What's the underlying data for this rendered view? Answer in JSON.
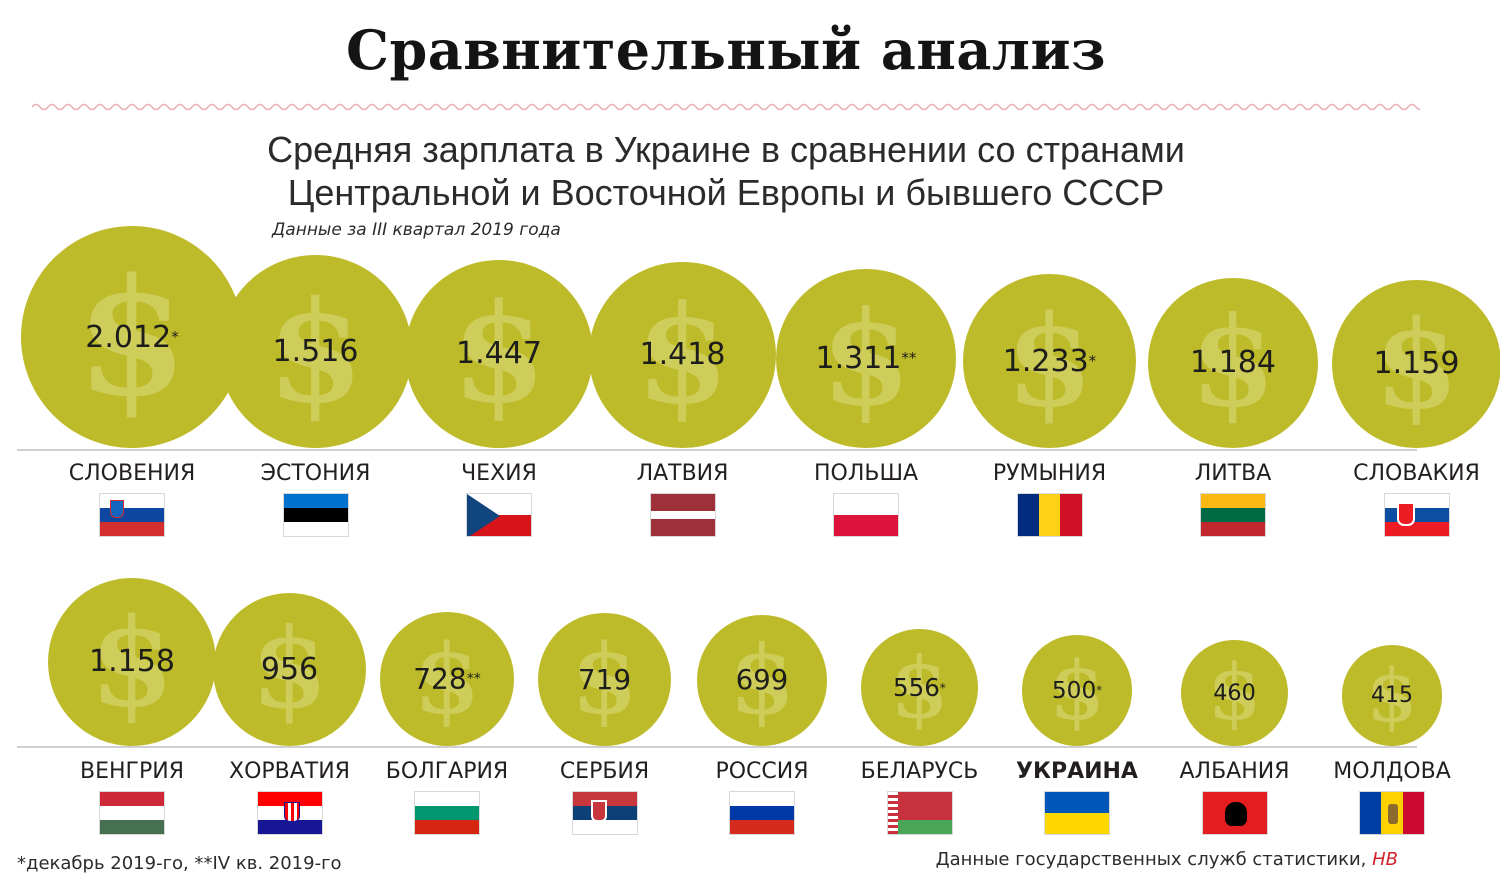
{
  "header": {
    "title": "Сравнительный анализ",
    "subtitle_line1": "Средняя зарплата в Украине в сравнении со странами",
    "subtitle_line2": "Центральной и Восточной Европы и бывшего СССР",
    "note": "Данные за III квартал 2019 года"
  },
  "footer": {
    "left": "*декабрь 2019-го, **IV кв. 2019-го",
    "right": "Данные государственных служб статистики,",
    "brand": "НВ"
  },
  "colors": {
    "coin": "#bebb2a",
    "coin_symbol": "#cfcd5a",
    "wave": "#e8aeb5",
    "brand": "#d0242b"
  },
  "icons": {
    "coin": "dollar-coin-icon",
    "flag": "flag-icon"
  },
  "chart_data": {
    "type": "bubble",
    "title": "Средняя зарплата в Украине в сравнении со странами Центральной и Восточной Европы и бывшего СССР",
    "unit": "$",
    "points": [
      {
        "country": "СЛОВЕНИЯ",
        "value": 2012,
        "label": "2.012",
        "mark": "*",
        "flag": "SI"
      },
      {
        "country": "ЭСТОНИЯ",
        "value": 1516,
        "label": "1.516",
        "mark": "",
        "flag": "EE"
      },
      {
        "country": "ЧЕХИЯ",
        "value": 1447,
        "label": "1.447",
        "mark": "",
        "flag": "CZ"
      },
      {
        "country": "ЛАТВИЯ",
        "value": 1418,
        "label": "1.418",
        "mark": "",
        "flag": "LV"
      },
      {
        "country": "ПОЛЬША",
        "value": 1311,
        "label": "1.311",
        "mark": "**",
        "flag": "PL"
      },
      {
        "country": "РУМЫНИЯ",
        "value": 1233,
        "label": "1.233",
        "mark": "*",
        "flag": "RO"
      },
      {
        "country": "ЛИТВА",
        "value": 1184,
        "label": "1.184",
        "mark": "",
        "flag": "LT"
      },
      {
        "country": "СЛОВАКИЯ",
        "value": 1159,
        "label": "1.159",
        "mark": "",
        "flag": "SK"
      },
      {
        "country": "ВЕНГРИЯ",
        "value": 1158,
        "label": "1.158",
        "mark": "",
        "flag": "HU"
      },
      {
        "country": "ХОРВАТИЯ",
        "value": 956,
        "label": "956",
        "mark": "",
        "flag": "HR"
      },
      {
        "country": "БОЛГАРИЯ",
        "value": 728,
        "label": "728",
        "mark": "**",
        "flag": "BG"
      },
      {
        "country": "СЕРБИЯ",
        "value": 719,
        "label": "719",
        "mark": "",
        "flag": "RS"
      },
      {
        "country": "РОССИЯ",
        "value": 699,
        "label": "699",
        "mark": "",
        "flag": "RU"
      },
      {
        "country": "БЕЛАРУСЬ",
        "value": 556,
        "label": "556",
        "mark": "*",
        "flag": "BY"
      },
      {
        "country": "УКРАИНА",
        "value": 500,
        "label": "500",
        "mark": "*",
        "flag": "UA",
        "highlight": true
      },
      {
        "country": "АЛБАНИЯ",
        "value": 460,
        "label": "460",
        "mark": "",
        "flag": "AL"
      },
      {
        "country": "МОЛДОВА",
        "value": 415,
        "label": "415",
        "mark": "",
        "flag": "MD"
      }
    ]
  }
}
